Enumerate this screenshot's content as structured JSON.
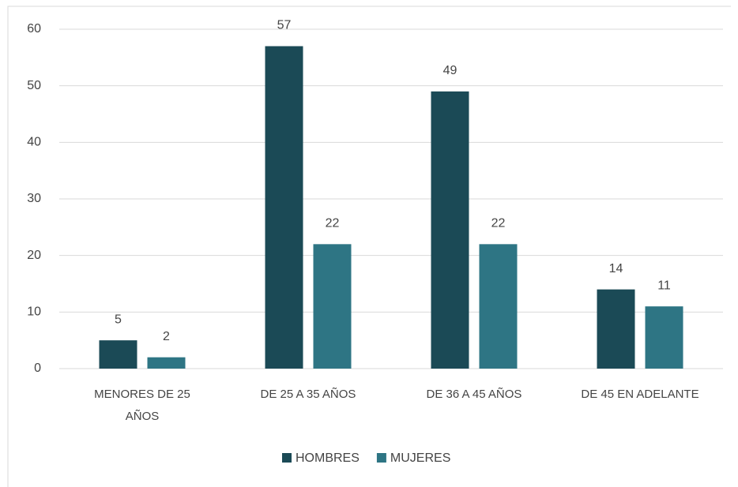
{
  "chart_data": {
    "type": "bar",
    "categories": [
      "MENORES DE 25 AÑOS",
      "DE 25 A 35 AÑOS",
      "DE 36 A 45 AÑOS",
      "DE 45 EN ADELANTE"
    ],
    "series": [
      {
        "name": "HOMBRES",
        "color": "#1b4a56",
        "values": [
          5,
          57,
          49,
          14
        ]
      },
      {
        "name": "MUJERES",
        "color": "#2e7584",
        "values": [
          2,
          22,
          22,
          11
        ]
      }
    ],
    "ylim": [
      0,
      60
    ],
    "yticks": [
      0,
      10,
      20,
      30,
      40,
      50,
      60
    ],
    "grid": true,
    "legend": "bottom"
  }
}
